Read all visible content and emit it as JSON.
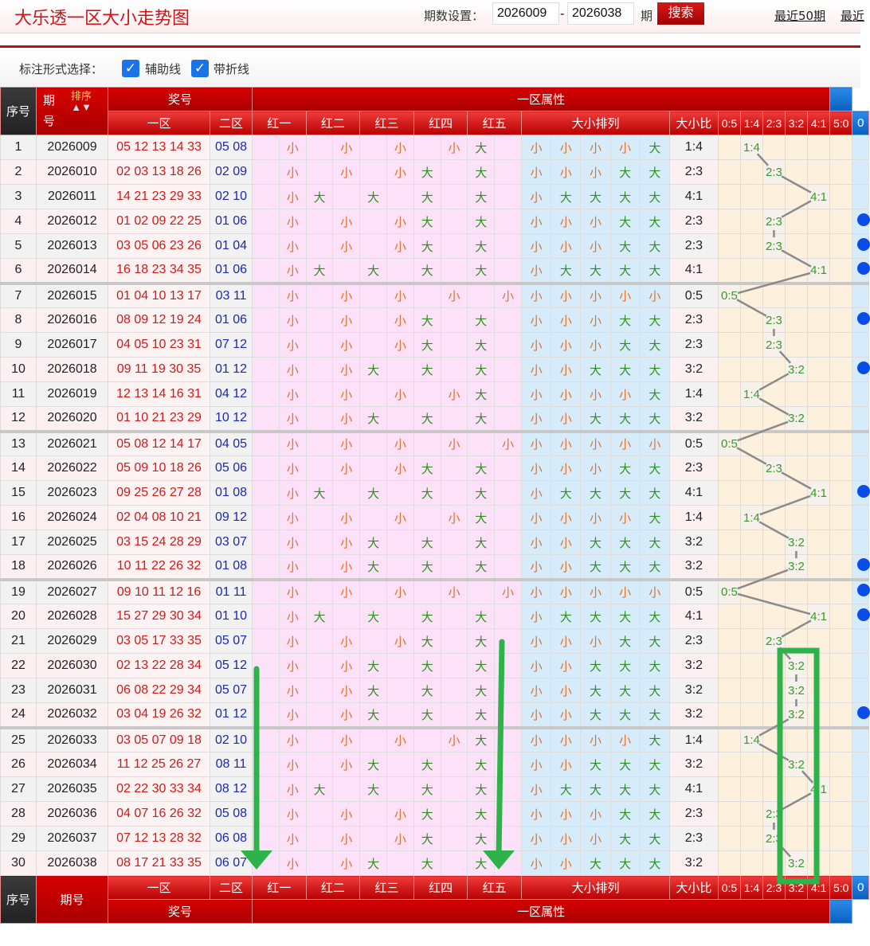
{
  "header": {
    "title": "大乐透一区大小走势图",
    "period_label": "期数设置：",
    "from": "2026009",
    "dash": "-",
    "to": "2026038",
    "period_unit": "期",
    "search": "搜索",
    "links": [
      "最近50期",
      "最近"
    ]
  },
  "options": {
    "label": "标注形式选择：",
    "aux": "辅助线",
    "fold": "带折线",
    "aux_checked": true,
    "fold_checked": true
  },
  "columns": {
    "seq": "序号",
    "issue_a": "期",
    "issue_b": "号",
    "issue": "期号",
    "sort": "排序",
    "sort_arrows": "▲▼",
    "prize": "奖号",
    "zone1": "一区",
    "zone2": "二区",
    "attr": "一区属性",
    "reds": [
      "红一",
      "红二",
      "红三",
      "红四",
      "红五"
    ],
    "arrange": "大小排列",
    "ratio": "大小比",
    "ratios": [
      "0:5",
      "1:4",
      "2:3",
      "3:2",
      "4:1",
      "5:0"
    ],
    "extra": "0"
  },
  "colors": {
    "header_red": "#c80000",
    "small": "#e0702a",
    "big": "#2f8f1f",
    "red_num": "#d01a1a",
    "blue_num": "#1a28b4",
    "annotation": "#2db34a",
    "marker": "#0a4de6"
  },
  "rows": [
    {
      "seq": "1",
      "issue": "2026009",
      "reds": "05 12 13 14 33",
      "blues": "05 08",
      "pattern": "小小小小大",
      "ratio": "1:4",
      "dot": false
    },
    {
      "seq": "2",
      "issue": "2026010",
      "reds": "02 03 13 18 26",
      "blues": "02 09",
      "pattern": "小小小大大",
      "ratio": "2:3",
      "dot": false
    },
    {
      "seq": "3",
      "issue": "2026011",
      "reds": "14 21 23 29 33",
      "blues": "02 10",
      "pattern": "小大大大大",
      "ratio": "4:1",
      "dot": false
    },
    {
      "seq": "4",
      "issue": "2026012",
      "reds": "01 02 09 22 25",
      "blues": "01 06",
      "pattern": "小小小大大",
      "ratio": "2:3",
      "dot": true
    },
    {
      "seq": "5",
      "issue": "2026013",
      "reds": "03 05 06 23 26",
      "blues": "01 04",
      "pattern": "小小小大大",
      "ratio": "2:3",
      "dot": true
    },
    {
      "seq": "6",
      "issue": "2026014",
      "reds": "16 18 23 34 35",
      "blues": "01 06",
      "pattern": "小大大大大",
      "ratio": "4:1",
      "dot": true
    },
    {
      "seq": "7",
      "issue": "2026015",
      "reds": "01 04 10 13 17",
      "blues": "03 11",
      "pattern": "小小小小小",
      "ratio": "0:5",
      "dot": false
    },
    {
      "seq": "8",
      "issue": "2026016",
      "reds": "08 09 12 19 24",
      "blues": "01 06",
      "pattern": "小小小大大",
      "ratio": "2:3",
      "dot": true
    },
    {
      "seq": "9",
      "issue": "2026017",
      "reds": "04 05 10 23 31",
      "blues": "07 12",
      "pattern": "小小小大大",
      "ratio": "2:3",
      "dot": false
    },
    {
      "seq": "10",
      "issue": "2026018",
      "reds": "09 11 19 30 35",
      "blues": "01 12",
      "pattern": "小小大大大",
      "ratio": "3:2",
      "dot": true
    },
    {
      "seq": "11",
      "issue": "2026019",
      "reds": "12 13 14 16 31",
      "blues": "04 12",
      "pattern": "小小小小大",
      "ratio": "1:4",
      "dot": false
    },
    {
      "seq": "12",
      "issue": "2026020",
      "reds": "01 10 21 23 29",
      "blues": "10 12",
      "pattern": "小小大大大",
      "ratio": "3:2",
      "dot": false
    },
    {
      "seq": "13",
      "issue": "2026021",
      "reds": "05 08 12 14 17",
      "blues": "04 05",
      "pattern": "小小小小小",
      "ratio": "0:5",
      "dot": false
    },
    {
      "seq": "14",
      "issue": "2026022",
      "reds": "05 09 10 18 26",
      "blues": "05 06",
      "pattern": "小小小大大",
      "ratio": "2:3",
      "dot": false
    },
    {
      "seq": "15",
      "issue": "2026023",
      "reds": "09 25 26 27 28",
      "blues": "01 08",
      "pattern": "小大大大大",
      "ratio": "4:1",
      "dot": true
    },
    {
      "seq": "16",
      "issue": "2026024",
      "reds": "02 04 08 10 21",
      "blues": "09 12",
      "pattern": "小小小小大",
      "ratio": "1:4",
      "dot": false
    },
    {
      "seq": "17",
      "issue": "2026025",
      "reds": "03 15 24 28 29",
      "blues": "03 07",
      "pattern": "小小大大大",
      "ratio": "3:2",
      "dot": false
    },
    {
      "seq": "18",
      "issue": "2026026",
      "reds": "10 11 22 26 32",
      "blues": "01 08",
      "pattern": "小小大大大",
      "ratio": "3:2",
      "dot": true
    },
    {
      "seq": "19",
      "issue": "2026027",
      "reds": "09 10 11 12 16",
      "blues": "01 11",
      "pattern": "小小小小小",
      "ratio": "0:5",
      "dot": true
    },
    {
      "seq": "20",
      "issue": "2026028",
      "reds": "15 27 29 30 34",
      "blues": "01 10",
      "pattern": "小大大大大",
      "ratio": "4:1",
      "dot": true
    },
    {
      "seq": "21",
      "issue": "2026029",
      "reds": "03 05 17 33 35",
      "blues": "05 07",
      "pattern": "小小小大大",
      "ratio": "2:3",
      "dot": false
    },
    {
      "seq": "22",
      "issue": "2026030",
      "reds": "02 13 22 28 34",
      "blues": "05 12",
      "pattern": "小小大大大",
      "ratio": "3:2",
      "dot": false
    },
    {
      "seq": "23",
      "issue": "2026031",
      "reds": "06 08 22 29 34",
      "blues": "05 07",
      "pattern": "小小大大大",
      "ratio": "3:2",
      "dot": false
    },
    {
      "seq": "24",
      "issue": "2026032",
      "reds": "03 04 19 26 32",
      "blues": "01 12",
      "pattern": "小小大大大",
      "ratio": "3:2",
      "dot": true
    },
    {
      "seq": "25",
      "issue": "2026033",
      "reds": "03 05 07 09 18",
      "blues": "02 10",
      "pattern": "小小小小大",
      "ratio": "1:4",
      "dot": false
    },
    {
      "seq": "26",
      "issue": "2026034",
      "reds": "11 12 25 26 27",
      "blues": "08 11",
      "pattern": "小小大大大",
      "ratio": "3:2",
      "dot": false
    },
    {
      "seq": "27",
      "issue": "2026035",
      "reds": "02 22 30 33 34",
      "blues": "08 12",
      "pattern": "小大大大大",
      "ratio": "4:1",
      "dot": false
    },
    {
      "seq": "28",
      "issue": "2026036",
      "reds": "04 07 16 26 32",
      "blues": "05 08",
      "pattern": "小小小大大",
      "ratio": "2:3",
      "dot": false
    },
    {
      "seq": "29",
      "issue": "2026037",
      "reds": "07 12 13 28 32",
      "blues": "06 08",
      "pattern": "小小小大大",
      "ratio": "2:3",
      "dot": false
    },
    {
      "seq": "30",
      "issue": "2026038",
      "reds": "08 17 21 33 35",
      "blues": "06 07",
      "pattern": "小小大大大",
      "ratio": "3:2",
      "dot": false
    }
  ]
}
